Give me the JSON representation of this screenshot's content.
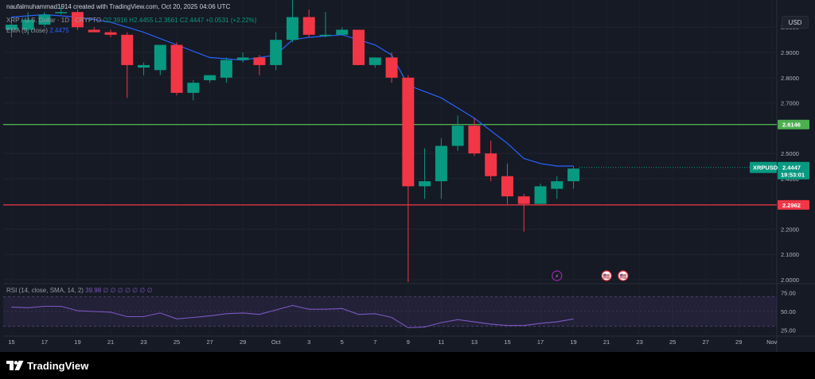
{
  "header": {
    "credit": "naufalmuhammad1914 created with TradingView.com, Oct 20, 2025 04:06 UTC",
    "symbol": "XRP / U.S. Dollar · 1D · CRYPTO",
    "ohlc": "O2.3916 H2.4455 L2.3561 C2.4447 +0.0531 (+2.22%)",
    "ema_label": "EMA (9, close)",
    "ema_value": "2.4475"
  },
  "currency_button": "USD",
  "rsi_legend": {
    "label": "RSI (14, close, SMA, 14, 2)",
    "values": "39.98 ∅ ∅ ∅ ∅ ∅ ∅ ∅"
  },
  "watermark": "TradingView",
  "price_tag": {
    "symbol": "XRPUSD",
    "price": "2.4447",
    "countdown": "19:53:01"
  },
  "colors": {
    "up": "#089981",
    "down": "#f23645",
    "ema": "#2962ff",
    "rsi": "#7e57c2",
    "resistance": "#4caf50",
    "support": "#f23645",
    "background": "#161a25"
  },
  "chart_data": {
    "type": "candlestick",
    "timeframe": "1D",
    "symbol": "XRPUSD",
    "price_axis": {
      "ticks": [
        "3.0000",
        "2.9000",
        "2.8000",
        "2.7000",
        "2.5000",
        "2.4000",
        "2.2000",
        "2.1000",
        "2.0000"
      ],
      "ylim": [
        2.0,
        3.07
      ]
    },
    "x_axis": {
      "ticks": [
        {
          "label": "15",
          "day": -14
        },
        {
          "label": "17",
          "day": -12
        },
        {
          "label": "19",
          "day": -10
        },
        {
          "label": "21",
          "day": -8
        },
        {
          "label": "23",
          "day": -6
        },
        {
          "label": "25",
          "day": -4
        },
        {
          "label": "27",
          "day": -2
        },
        {
          "label": "29",
          "day": 0
        },
        {
          "label": "Oct",
          "day": 2
        },
        {
          "label": "3",
          "day": 4
        },
        {
          "label": "5",
          "day": 6
        },
        {
          "label": "7",
          "day": 8
        },
        {
          "label": "9",
          "day": 10
        },
        {
          "label": "11",
          "day": 12
        },
        {
          "label": "13",
          "day": 14
        },
        {
          "label": "15",
          "day": 16
        },
        {
          "label": "17",
          "day": 18
        },
        {
          "label": "19",
          "day": 20
        },
        {
          "label": "21",
          "day": 22
        },
        {
          "label": "23",
          "day": 24
        },
        {
          "label": "25",
          "day": 26
        },
        {
          "label": "27",
          "day": 28
        },
        {
          "label": "29",
          "day": 30
        },
        {
          "label": "Nov",
          "day": 32
        }
      ],
      "xlim": [
        -14.5,
        32.3
      ]
    },
    "candles": [
      {
        "day": -14,
        "o": 2.99,
        "h": 3.03,
        "l": 2.96,
        "c": 3.01
      },
      {
        "day": -13,
        "o": 2.99,
        "h": 3.06,
        "l": 2.97,
        "c": 3.03
      },
      {
        "day": -12,
        "o": 3.01,
        "h": 3.06,
        "l": 3.0,
        "c": 3.05
      },
      {
        "day": -11,
        "o": 3.06,
        "h": 3.08,
        "l": 3.05,
        "c": 3.06
      },
      {
        "day": -10,
        "o": 3.06,
        "h": 3.07,
        "l": 2.99,
        "c": 3.0
      },
      {
        "day": -9,
        "o": 2.99,
        "h": 3.0,
        "l": 2.98,
        "c": 2.98
      },
      {
        "day": -8,
        "o": 2.98,
        "h": 2.99,
        "l": 2.96,
        "c": 2.97
      },
      {
        "day": -7,
        "o": 2.97,
        "h": 2.98,
        "l": 2.72,
        "c": 2.85
      },
      {
        "day": -6,
        "o": 2.84,
        "h": 2.86,
        "l": 2.81,
        "c": 2.85
      },
      {
        "day": -5,
        "o": 2.83,
        "h": 2.93,
        "l": 2.81,
        "c": 2.93
      },
      {
        "day": -4,
        "o": 2.93,
        "h": 2.94,
        "l": 2.73,
        "c": 2.74
      },
      {
        "day": -3,
        "o": 2.74,
        "h": 2.79,
        "l": 2.71,
        "c": 2.78
      },
      {
        "day": -2,
        "o": 2.79,
        "h": 2.81,
        "l": 2.78,
        "c": 2.81
      },
      {
        "day": -1,
        "o": 2.8,
        "h": 2.88,
        "l": 2.78,
        "c": 2.87
      },
      {
        "day": 0,
        "o": 2.87,
        "h": 2.9,
        "l": 2.86,
        "c": 2.88
      },
      {
        "day": 1,
        "o": 2.88,
        "h": 2.89,
        "l": 2.81,
        "c": 2.85
      },
      {
        "day": 2,
        "o": 2.85,
        "h": 2.98,
        "l": 2.83,
        "c": 2.95
      },
      {
        "day": 3,
        "o": 2.95,
        "h": 3.11,
        "l": 2.94,
        "c": 3.04
      },
      {
        "day": 4,
        "o": 3.04,
        "h": 3.07,
        "l": 2.96,
        "c": 2.97
      },
      {
        "day": 5,
        "o": 2.97,
        "h": 3.06,
        "l": 2.96,
        "c": 2.97
      },
      {
        "day": 6,
        "o": 2.97,
        "h": 3.0,
        "l": 2.97,
        "c": 2.99
      },
      {
        "day": 7,
        "o": 2.99,
        "h": 2.99,
        "l": 2.85,
        "c": 2.85
      },
      {
        "day": 8,
        "o": 2.85,
        "h": 2.88,
        "l": 2.84,
        "c": 2.88
      },
      {
        "day": 9,
        "o": 2.88,
        "h": 2.9,
        "l": 2.78,
        "c": 2.8
      },
      {
        "day": 10,
        "o": 2.8,
        "h": 2.81,
        "l": 1.99,
        "c": 2.37
      },
      {
        "day": 11,
        "o": 2.37,
        "h": 2.52,
        "l": 2.32,
        "c": 2.39
      },
      {
        "day": 12,
        "o": 2.39,
        "h": 2.56,
        "l": 2.32,
        "c": 2.53
      },
      {
        "day": 13,
        "o": 2.53,
        "h": 2.65,
        "l": 2.51,
        "c": 2.61
      },
      {
        "day": 14,
        "o": 2.61,
        "h": 2.64,
        "l": 2.49,
        "c": 2.5
      },
      {
        "day": 15,
        "o": 2.5,
        "h": 2.55,
        "l": 2.39,
        "c": 2.41
      },
      {
        "day": 16,
        "o": 2.41,
        "h": 2.46,
        "l": 2.3,
        "c": 2.33
      },
      {
        "day": 17,
        "o": 2.33,
        "h": 2.34,
        "l": 2.19,
        "c": 2.3
      },
      {
        "day": 18,
        "o": 2.3,
        "h": 2.38,
        "l": 2.3,
        "c": 2.37
      },
      {
        "day": 19,
        "o": 2.36,
        "h": 2.41,
        "l": 2.32,
        "c": 2.39
      },
      {
        "day": 20,
        "o": 2.39,
        "h": 2.45,
        "l": 2.36,
        "c": 2.44
      }
    ],
    "ema": {
      "name": "EMA (9, close)",
      "points": [
        {
          "day": -14,
          "v": 3.04
        },
        {
          "day": -12,
          "v": 3.05
        },
        {
          "day": -10,
          "v": 3.04
        },
        {
          "day": -8,
          "v": 3.02
        },
        {
          "day": -6,
          "v": 2.98
        },
        {
          "day": -4,
          "v": 2.93
        },
        {
          "day": -2,
          "v": 2.88
        },
        {
          "day": 0,
          "v": 2.87
        },
        {
          "day": 2,
          "v": 2.89
        },
        {
          "day": 3,
          "v": 2.95
        },
        {
          "day": 4,
          "v": 2.96
        },
        {
          "day": 6,
          "v": 2.97
        },
        {
          "day": 7,
          "v": 2.95
        },
        {
          "day": 8,
          "v": 2.93
        },
        {
          "day": 9,
          "v": 2.89
        },
        {
          "day": 10,
          "v": 2.77
        },
        {
          "day": 12,
          "v": 2.72
        },
        {
          "day": 14,
          "v": 2.64
        },
        {
          "day": 16,
          "v": 2.54
        },
        {
          "day": 17,
          "v": 2.48
        },
        {
          "day": 18,
          "v": 2.46
        },
        {
          "day": 19,
          "v": 2.45
        },
        {
          "day": 20,
          "v": 2.45
        }
      ]
    },
    "horizontal_lines": [
      {
        "label": "2.6146",
        "value": 2.6146,
        "color": "#4caf50"
      },
      {
        "label": "2.2962",
        "value": 2.2962,
        "color": "#f23645"
      }
    ],
    "last_price": 2.4447,
    "event_icons": [
      {
        "day": 19,
        "symbol": "⚡"
      },
      {
        "day": 22,
        "symbol": "🇺🇸"
      },
      {
        "day": 23,
        "symbol": "🇺🇸"
      }
    ],
    "rsi": {
      "label": "RSI (14, close, SMA, 14, 2)",
      "ticks": [
        "75.00",
        "50.00",
        "25.00"
      ],
      "ylim": [
        20,
        80
      ],
      "band": [
        30,
        70
      ],
      "points": [
        {
          "day": -14,
          "v": 56
        },
        {
          "day": -13,
          "v": 55
        },
        {
          "day": -12,
          "v": 57
        },
        {
          "day": -11,
          "v": 57
        },
        {
          "day": -10,
          "v": 51
        },
        {
          "day": -9,
          "v": 50
        },
        {
          "day": -8,
          "v": 49
        },
        {
          "day": -7,
          "v": 43
        },
        {
          "day": -6,
          "v": 43
        },
        {
          "day": -5,
          "v": 48
        },
        {
          "day": -4,
          "v": 40
        },
        {
          "day": -3,
          "v": 42
        },
        {
          "day": -2,
          "v": 44
        },
        {
          "day": -1,
          "v": 47
        },
        {
          "day": 0,
          "v": 48
        },
        {
          "day": 1,
          "v": 46
        },
        {
          "day": 2,
          "v": 52
        },
        {
          "day": 3,
          "v": 58
        },
        {
          "day": 4,
          "v": 53
        },
        {
          "day": 5,
          "v": 53
        },
        {
          "day": 6,
          "v": 54
        },
        {
          "day": 7,
          "v": 46
        },
        {
          "day": 8,
          "v": 47
        },
        {
          "day": 9,
          "v": 42
        },
        {
          "day": 10,
          "v": 28
        },
        {
          "day": 11,
          "v": 29
        },
        {
          "day": 12,
          "v": 35
        },
        {
          "day": 13,
          "v": 39
        },
        {
          "day": 14,
          "v": 36
        },
        {
          "day": 15,
          "v": 33
        },
        {
          "day": 16,
          "v": 31
        },
        {
          "day": 17,
          "v": 31
        },
        {
          "day": 18,
          "v": 34
        },
        {
          "day": 19,
          "v": 36
        },
        {
          "day": 20,
          "v": 39.98
        }
      ]
    }
  }
}
